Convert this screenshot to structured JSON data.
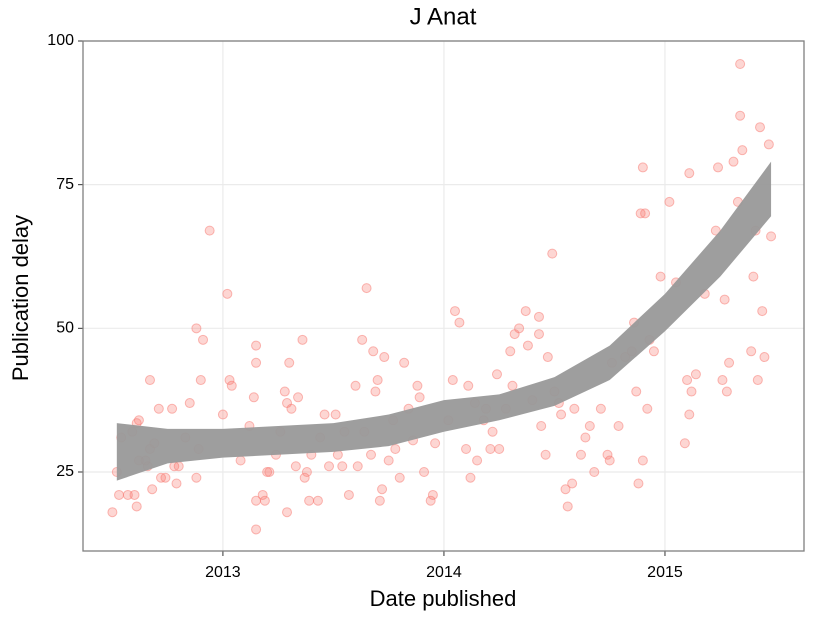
{
  "chart_data": {
    "type": "scatter",
    "title": "J Anat",
    "x_label": "Date published",
    "y_label": "Publication delay",
    "xlim": [
      2012.367,
      2015.629
    ],
    "ylim": [
      11.25,
      100
    ],
    "xticks": [
      2013,
      2014,
      2015
    ],
    "yticks": [
      25,
      50,
      75,
      100
    ],
    "grid": true,
    "color": "#f8766d",
    "x": [
      2012.5,
      2012.52,
      2012.53,
      2012.54,
      2012.57,
      2012.59,
      2012.6,
      2012.61,
      2012.61,
      2012.62,
      2012.62,
      2012.65,
      2012.66,
      2012.67,
      2012.67,
      2012.68,
      2012.69,
      2012.71,
      2012.72,
      2012.74,
      2012.77,
      2012.78,
      2012.79,
      2012.8,
      2012.83,
      2012.85,
      2012.88,
      2012.88,
      2012.89,
      2012.9,
      2012.91,
      2012.94,
      2013.0,
      2013.02,
      2013.03,
      2013.04,
      2013.08,
      2013.12,
      2013.14,
      2013.15,
      2013.15,
      2013.15,
      2013.15,
      2013.18,
      2013.19,
      2013.2,
      2013.21,
      2013.24,
      2013.26,
      2013.28,
      2013.29,
      2013.29,
      2013.3,
      2013.31,
      2013.33,
      2013.34,
      2013.36,
      2013.37,
      2013.38,
      2013.39,
      2013.4,
      2013.43,
      2013.44,
      2013.46,
      2013.48,
      2013.51,
      2013.52,
      2013.54,
      2013.55,
      2013.57,
      2013.6,
      2013.61,
      2013.63,
      2013.64,
      2013.65,
      2013.67,
      2013.68,
      2013.69,
      2013.7,
      2013.71,
      2013.72,
      2013.73,
      2013.75,
      2013.77,
      2013.78,
      2013.8,
      2013.82,
      2013.84,
      2013.86,
      2013.88,
      2013.89,
      2013.91,
      2013.94,
      2013.95,
      2013.96,
      2014.02,
      2014.04,
      2014.05,
      2014.07,
      2014.1,
      2014.11,
      2014.12,
      2014.14,
      2014.15,
      2014.18,
      2014.19,
      2014.21,
      2014.22,
      2014.24,
      2014.25,
      2014.28,
      2014.3,
      2014.31,
      2014.32,
      2014.34,
      2014.37,
      2014.38,
      2014.4,
      2014.43,
      2014.43,
      2014.44,
      2014.46,
      2014.47,
      2014.49,
      2014.5,
      2014.52,
      2014.53,
      2014.55,
      2014.56,
      2014.58,
      2014.59,
      2014.62,
      2014.64,
      2014.66,
      2014.68,
      2014.71,
      2014.74,
      2014.75,
      2014.76,
      2014.79,
      2014.82,
      2014.85,
      2014.86,
      2014.87,
      2014.88,
      2014.89,
      2014.9,
      2014.9,
      2014.91,
      2014.92,
      2014.93,
      2014.95,
      2014.98,
      2015.02,
      2015.05,
      2015.09,
      2015.1,
      2015.11,
      2015.11,
      2015.12,
      2015.14,
      2015.18,
      2015.23,
      2015.24,
      2015.26,
      2015.27,
      2015.28,
      2015.29,
      2015.31,
      2015.33,
      2015.34,
      2015.34,
      2015.35,
      2015.39,
      2015.4,
      2015.41,
      2015.42,
      2015.43,
      2015.44,
      2015.45,
      2015.47,
      2015.48
    ],
    "values": [
      18,
      25,
      21,
      31,
      21,
      32,
      21,
      33.5,
      19,
      34,
      27,
      27,
      26,
      41,
      29,
      22,
      30,
      36,
      24,
      24,
      36,
      26,
      23,
      26,
      31,
      37,
      50,
      24,
      29,
      41,
      48,
      67,
      35,
      56,
      41,
      40,
      27,
      33,
      38,
      44,
      47,
      20,
      15,
      21,
      20,
      25,
      25,
      28,
      32,
      39,
      37,
      18,
      44,
      36,
      26,
      38,
      48,
      24,
      25,
      20,
      28,
      20,
      31,
      35,
      26,
      35,
      28,
      26,
      32,
      21,
      40,
      26,
      48,
      32,
      57,
      28,
      46,
      39,
      41,
      20,
      22,
      45,
      27,
      34,
      29,
      24,
      44,
      36,
      30.5,
      40,
      38,
      25,
      20,
      21,
      30,
      34,
      41,
      53,
      51,
      29,
      40,
      24,
      37,
      27,
      34,
      36,
      29,
      32,
      42,
      29,
      36,
      46,
      40,
      49,
      50,
      53,
      47,
      37.5,
      49,
      52,
      33,
      28,
      45,
      63,
      39,
      37,
      35,
      22,
      19,
      23,
      36,
      28,
      31,
      33,
      25,
      36,
      28,
      27,
      44,
      33,
      45,
      46,
      51,
      39,
      23,
      70,
      78,
      27,
      70,
      36,
      48,
      46,
      59,
      72,
      58,
      30,
      41,
      77,
      35,
      39,
      42,
      56,
      67,
      78,
      41,
      55,
      39,
      44,
      79,
      72,
      87,
      96,
      81,
      46,
      59,
      67,
      41,
      85,
      53,
      45,
      82,
      66
    ],
    "smooth": {
      "color": "#999999",
      "x": [
        2012.52,
        2012.75,
        2013,
        2013.25,
        2013.5,
        2013.75,
        2014,
        2014.25,
        2014.5,
        2014.75,
        2015,
        2015.25,
        2015.48
      ],
      "lower": [
        23.5,
        26.5,
        27.5,
        28,
        28.5,
        29.5,
        32,
        34,
        36.5,
        41,
        49.5,
        59,
        69.5
      ],
      "upper": [
        33.5,
        32.5,
        32.5,
        33,
        33.5,
        35,
        37.5,
        38.5,
        41.5,
        47,
        56,
        67,
        79
      ]
    }
  }
}
